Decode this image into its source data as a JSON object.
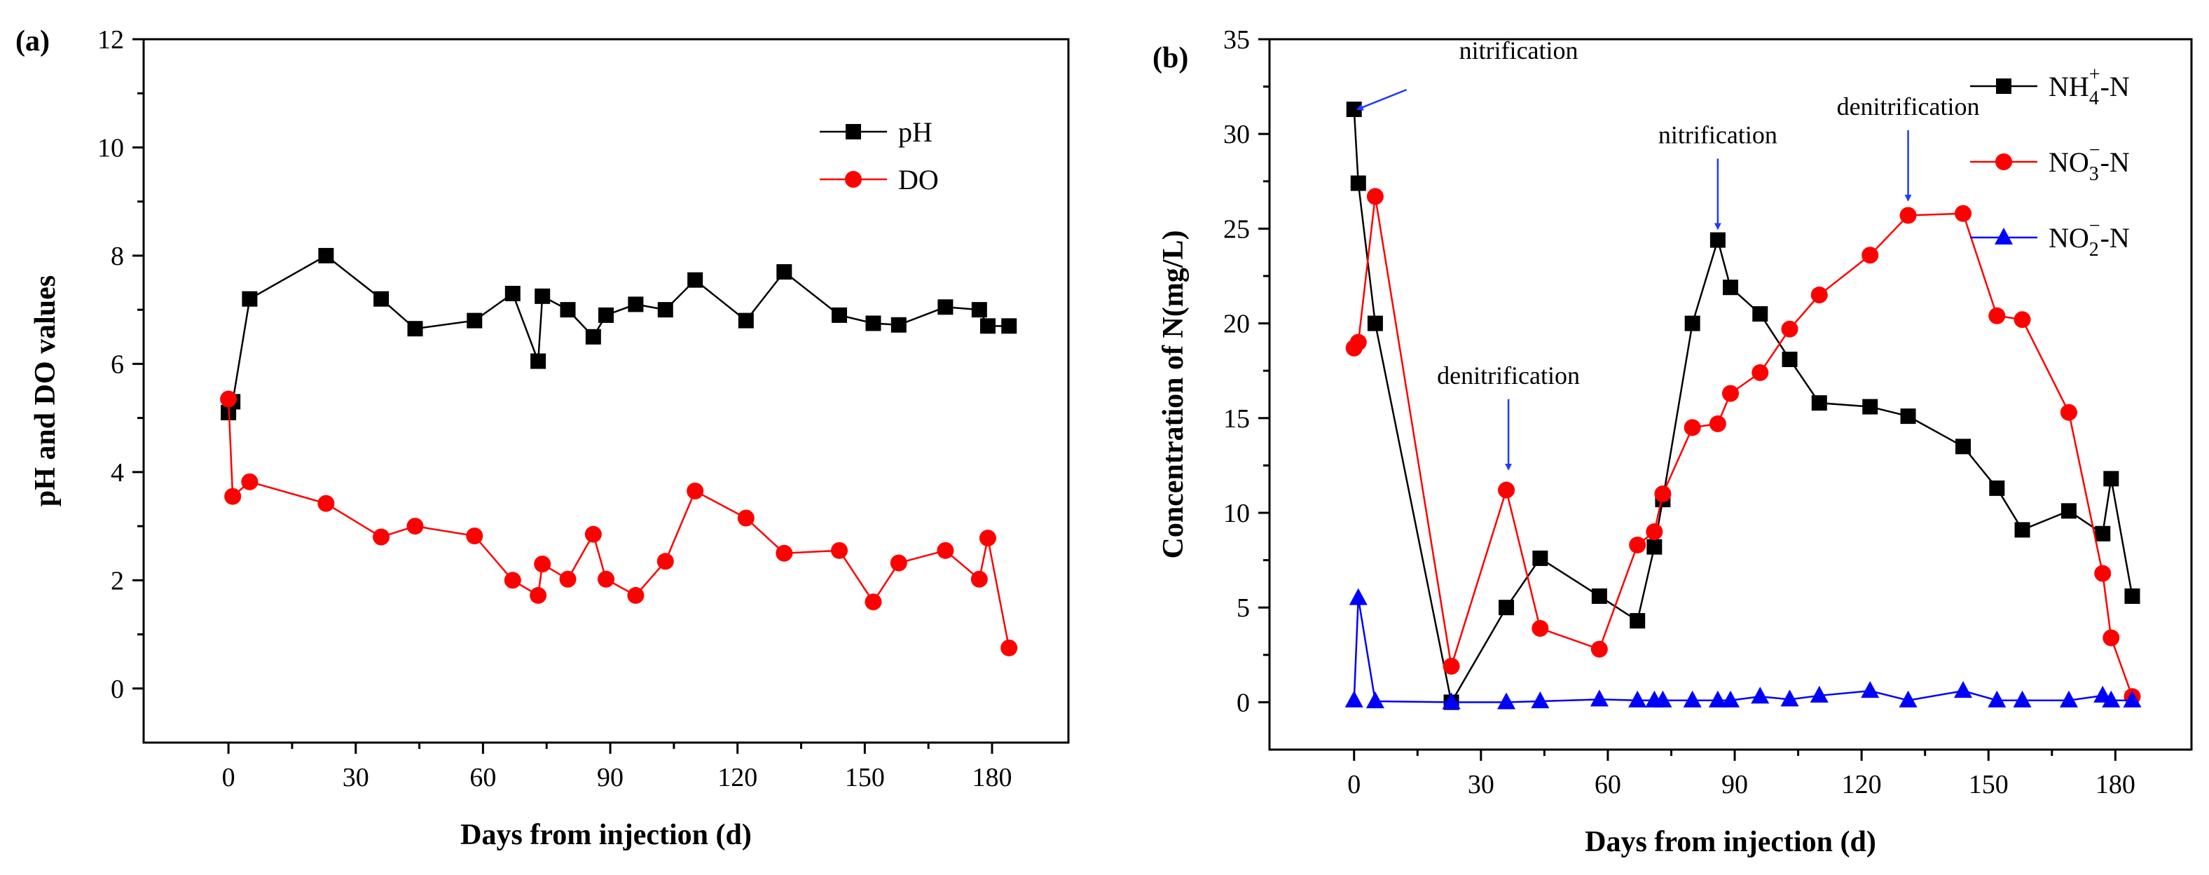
{
  "chart_data": [
    {
      "type": "line",
      "panel": "(a)",
      "xlabel": "Days from injection (d)",
      "ylabel": "pH and DO values",
      "xlim": [
        -20,
        198
      ],
      "ylim": [
        -1,
        12
      ],
      "xticks": [
        0,
        30,
        60,
        90,
        120,
        150,
        180
      ],
      "yticks": [
        0,
        2,
        4,
        6,
        8,
        10,
        12
      ],
      "legend": "top-right",
      "series": [
        {
          "name": "pH",
          "color": "#000000",
          "marker": "square",
          "x": [
            0,
            1,
            5,
            23,
            36,
            44,
            58,
            67,
            73,
            74,
            80,
            86,
            89,
            96,
            103,
            110,
            122,
            131,
            144,
            152,
            158,
            169,
            177,
            179,
            184
          ],
          "y": [
            5.1,
            5.3,
            7.2,
            8.0,
            7.2,
            6.65,
            6.8,
            7.3,
            6.05,
            7.25,
            7.0,
            6.5,
            6.9,
            7.1,
            7.0,
            7.55,
            6.8,
            7.7,
            6.9,
            6.75,
            6.72,
            7.05,
            7.0,
            6.7,
            6.7
          ]
        },
        {
          "name": "DO",
          "color": "#ff0000",
          "marker": "circle",
          "x": [
            0,
            1,
            5,
            23,
            36,
            44,
            58,
            67,
            73,
            74,
            80,
            86,
            89,
            96,
            103,
            110,
            122,
            131,
            144,
            152,
            158,
            169,
            177,
            179,
            184
          ],
          "y": [
            5.35,
            3.55,
            3.82,
            3.42,
            2.8,
            3.0,
            2.82,
            2.0,
            1.72,
            2.3,
            2.02,
            2.85,
            2.02,
            1.72,
            2.35,
            3.65,
            3.15,
            2.5,
            2.55,
            1.6,
            2.32,
            2.55,
            2.02,
            2.78,
            0.75
          ]
        }
      ]
    },
    {
      "type": "line",
      "panel": "(b)",
      "xlabel": "Days from injection (d)",
      "ylabel": "Concentration of N(mg/L)",
      "xlim": [
        -20,
        198
      ],
      "ylim": [
        -2.5,
        35
      ],
      "xticks": [
        0,
        30,
        60,
        90,
        120,
        150,
        180
      ],
      "yticks": [
        0,
        5,
        10,
        15,
        20,
        25,
        30,
        35
      ],
      "legend": "top-right",
      "series": [
        {
          "name_base": "NH",
          "name_sub": "4",
          "name_sup": "+",
          "name_tail": "-N",
          "color": "#000000",
          "marker": "square",
          "x": [
            0,
            1,
            5,
            23,
            36,
            44,
            58,
            67,
            71,
            73,
            80,
            86,
            89,
            96,
            103,
            110,
            122,
            131,
            144,
            152,
            158,
            169,
            177,
            179,
            184
          ],
          "y": [
            31.3,
            27.4,
            20.0,
            0.0,
            5.0,
            7.6,
            5.6,
            4.3,
            8.2,
            10.7,
            20.0,
            24.4,
            21.9,
            20.5,
            18.1,
            15.8,
            15.6,
            15.1,
            13.5,
            11.3,
            9.1,
            10.1,
            8.9,
            11.8,
            5.6
          ]
        },
        {
          "name_base": "NO",
          "name_sub": "3",
          "name_sup": "−",
          "name_tail": "-N",
          "color": "#ff0000",
          "marker": "circle",
          "x": [
            0,
            1,
            5,
            23,
            36,
            44,
            58,
            67,
            71,
            73,
            80,
            86,
            89,
            96,
            103,
            110,
            122,
            131,
            144,
            152,
            158,
            169,
            177,
            179,
            184
          ],
          "y": [
            18.7,
            19.0,
            26.7,
            1.9,
            11.2,
            3.9,
            2.8,
            8.3,
            9.0,
            11.0,
            14.5,
            14.7,
            16.3,
            17.4,
            19.7,
            21.5,
            23.6,
            25.7,
            25.8,
            20.4,
            20.2,
            15.3,
            6.8,
            3.4,
            0.3
          ]
        },
        {
          "name_base": "NO",
          "name_sub": "2",
          "name_sup": "−",
          "name_tail": "-N",
          "color": "#0000ff",
          "marker": "triangle",
          "x": [
            0,
            1,
            5,
            23,
            36,
            44,
            58,
            67,
            71,
            73,
            80,
            86,
            89,
            96,
            103,
            110,
            122,
            131,
            144,
            152,
            158,
            169,
            177,
            179,
            184
          ],
          "y": [
            0.1,
            5.5,
            0.05,
            0.0,
            0.0,
            0.05,
            0.15,
            0.1,
            0.1,
            0.1,
            0.1,
            0.1,
            0.1,
            0.3,
            0.15,
            0.35,
            0.6,
            0.1,
            0.6,
            0.1,
            0.1,
            0.1,
            0.35,
            0.1,
            0.1
          ]
        }
      ],
      "annotations": [
        {
          "text": "nitrification",
          "tip_x": 0.8,
          "tip_y": 31.3
        },
        {
          "text": "denitrification",
          "tip_x": 36.5,
          "tip_y": 12.3
        },
        {
          "text": "nitrification",
          "tip_x": 86,
          "tip_y": 25.0
        },
        {
          "text": "denitrification",
          "tip_x": 131,
          "tip_y": 26.5
        }
      ]
    }
  ]
}
